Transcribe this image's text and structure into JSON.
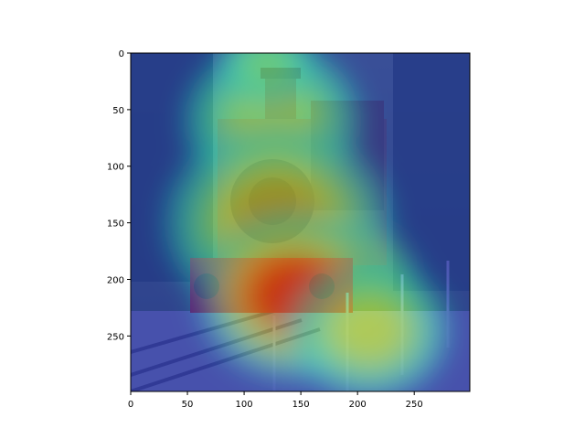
{
  "chart_data": {
    "type": "heatmap",
    "title": "",
    "xlabel": "",
    "ylabel": "",
    "xlim": [
      0,
      299
    ],
    "ylim": [
      299,
      0
    ],
    "x_ticks": [
      0,
      50,
      100,
      150,
      200,
      250
    ],
    "y_ticks": [
      0,
      50,
      100,
      150,
      200,
      250
    ],
    "colormap": "jet",
    "overlay_alpha": 0.5,
    "grid": false,
    "image_content": "steam locomotive on railway track with attention heatmap overlay",
    "hotspots": [
      {
        "x": 125,
        "y": 60,
        "intensity": 0.55,
        "spread": 55
      },
      {
        "x": 130,
        "y": 150,
        "intensity": 0.7,
        "spread": 70
      },
      {
        "x": 190,
        "y": 205,
        "intensity": 1.0,
        "spread": 45
      },
      {
        "x": 145,
        "y": 215,
        "intensity": 0.95,
        "spread": 60
      },
      {
        "x": 210,
        "y": 245,
        "intensity": 0.6,
        "spread": 50
      },
      {
        "x": 120,
        "y": 10,
        "intensity": 0.45,
        "spread": 30
      }
    ]
  }
}
